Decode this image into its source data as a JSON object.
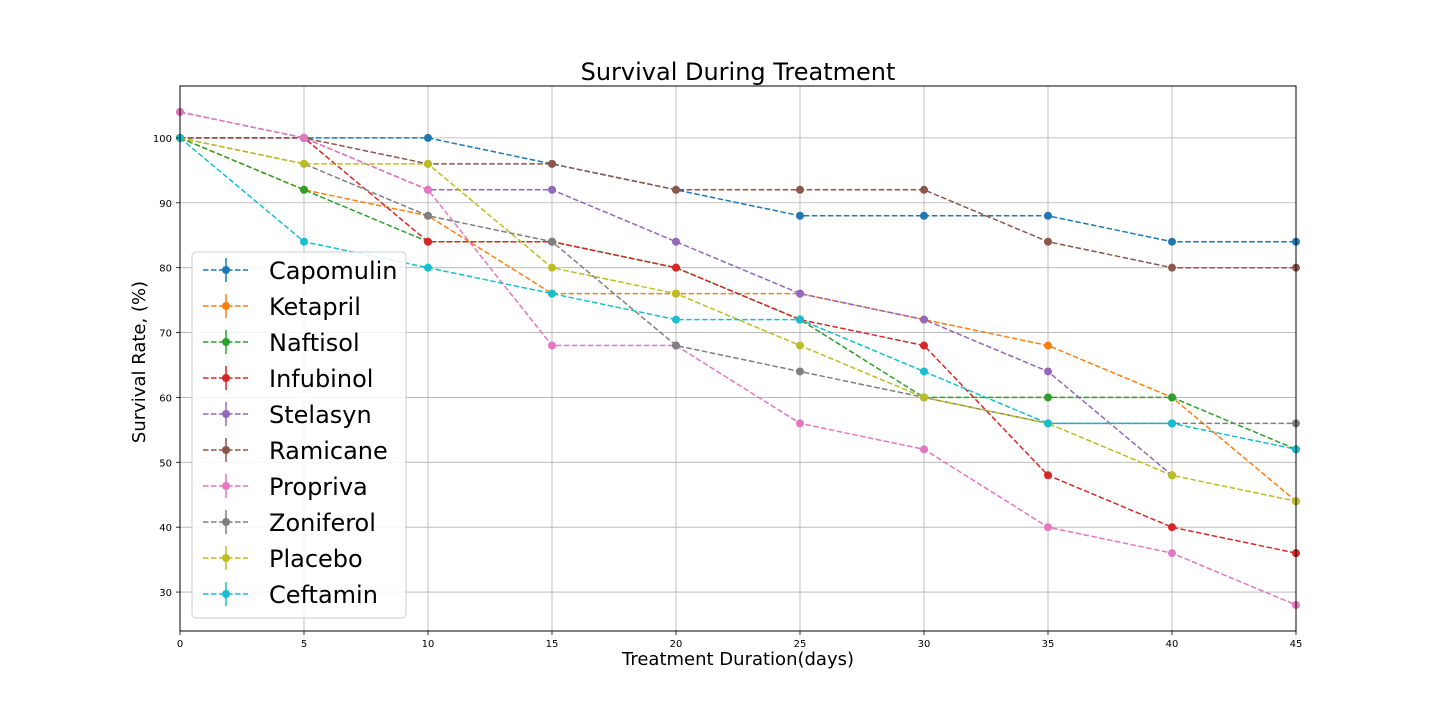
{
  "chart_data": {
    "type": "line",
    "title": "Survival During Treatment",
    "xlabel": "Treatment Duration(days)",
    "ylabel": "Survival Rate, (%)",
    "x": [
      0,
      5,
      10,
      15,
      20,
      25,
      30,
      35,
      40,
      45
    ],
    "xlim": [
      0,
      45
    ],
    "ylim": [
      24,
      108
    ],
    "xticks": [
      0,
      5,
      10,
      15,
      20,
      25,
      30,
      35,
      40,
      45
    ],
    "yticks": [
      30,
      40,
      50,
      60,
      70,
      80,
      90,
      100
    ],
    "grid": true,
    "legend_position": "left",
    "line_style": "dashed",
    "marker": "circle",
    "series": [
      {
        "name": "Capomulin",
        "color": "#1f77b4",
        "values": [
          100,
          100,
          100,
          96,
          92,
          88,
          88,
          88,
          84,
          84
        ]
      },
      {
        "name": "Ketapril",
        "color": "#ff7f0e",
        "values": [
          100,
          92,
          88,
          76,
          76,
          76,
          72,
          68,
          60,
          44
        ]
      },
      {
        "name": "Naftisol",
        "color": "#2ca02c",
        "values": [
          100,
          92,
          84,
          84,
          80,
          72,
          60,
          60,
          60,
          52
        ]
      },
      {
        "name": "Infubinol",
        "color": "#d62728",
        "values": [
          100,
          100,
          84,
          84,
          80,
          72,
          68,
          48,
          40,
          36
        ]
      },
      {
        "name": "Stelasyn",
        "color": "#9467bd",
        "values": [
          104,
          100,
          92,
          92,
          84,
          76,
          72,
          64,
          48,
          null
        ]
      },
      {
        "name": "Ramicane",
        "color": "#8c564b",
        "values": [
          100,
          100,
          96,
          96,
          92,
          92,
          92,
          84,
          80,
          80
        ]
      },
      {
        "name": "Propriva",
        "color": "#e377c2",
        "values": [
          104,
          100,
          92,
          68,
          68,
          56,
          52,
          40,
          36,
          28
        ]
      },
      {
        "name": "Zoniferol",
        "color": "#7f7f7f",
        "values": [
          100,
          96,
          88,
          84,
          68,
          64,
          60,
          56,
          56,
          56
        ]
      },
      {
        "name": "Placebo",
        "color": "#bcbd22",
        "values": [
          100,
          96,
          96,
          80,
          76,
          68,
          60,
          56,
          48,
          44
        ]
      },
      {
        "name": "Ceftamin",
        "color": "#17becf",
        "values": [
          100,
          84,
          80,
          76,
          72,
          72,
          64,
          56,
          56,
          52
        ]
      }
    ]
  }
}
